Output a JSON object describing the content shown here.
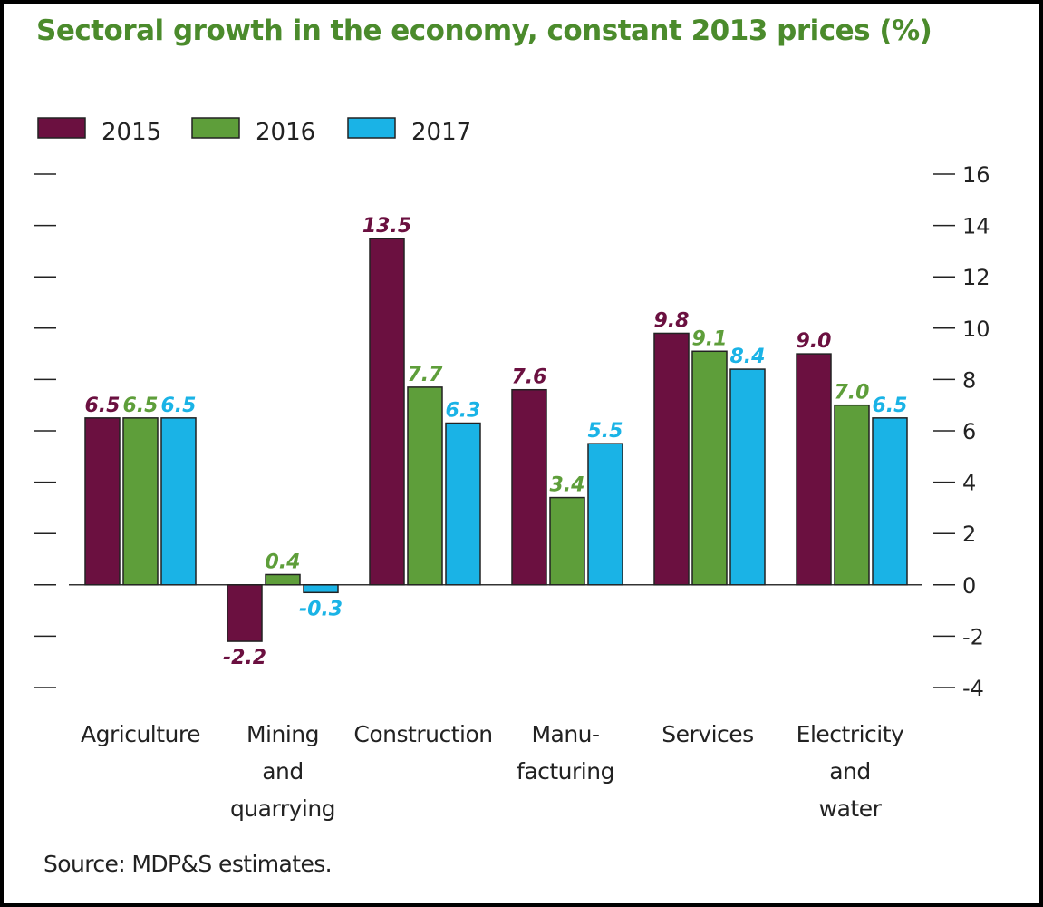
{
  "title": "Sectoral growth in the economy, constant 2013 prices (%)",
  "source": "Source: MDP&S estimates.",
  "chart_data": {
    "type": "bar",
    "title": "Sectoral growth in the economy, constant 2013 prices (%)",
    "xlabel": "",
    "ylabel": "",
    "ylim": [
      -4,
      16
    ],
    "yticks": [
      "16",
      "14",
      "12",
      "10",
      "8",
      "6",
      "4",
      "2",
      "0",
      "-2",
      "-4"
    ],
    "y_axis_side": "right",
    "grid": false,
    "legend_position": "top-left",
    "categories": [
      [
        "Agriculture"
      ],
      [
        "Mining",
        "and",
        "quarrying"
      ],
      [
        "Construction"
      ],
      [
        "Manu-",
        "facturing"
      ],
      [
        "Services"
      ],
      [
        "Electricity",
        "and",
        "water"
      ]
    ],
    "series": [
      {
        "name": "2015",
        "color": "#6b1040",
        "values": [
          6.5,
          -2.2,
          13.5,
          7.6,
          9.8,
          9.0
        ],
        "labels": [
          "6.5",
          "-2.2",
          "13.5",
          "7.6",
          "9.8",
          "9.0"
        ]
      },
      {
        "name": "2016",
        "color": "#5e9e3a",
        "values": [
          6.5,
          0.4,
          7.7,
          3.4,
          9.1,
          7.0
        ],
        "labels": [
          "6.5",
          "0.4",
          "7.7",
          "3.4",
          "9.1",
          "7.0"
        ]
      },
      {
        "name": "2017",
        "color": "#1ab3e6",
        "values": [
          6.5,
          -0.3,
          6.3,
          5.5,
          8.4,
          6.5
        ],
        "labels": [
          "6.5",
          "-0.3",
          "6.3",
          "5.5",
          "8.4",
          "6.5"
        ]
      }
    ]
  }
}
